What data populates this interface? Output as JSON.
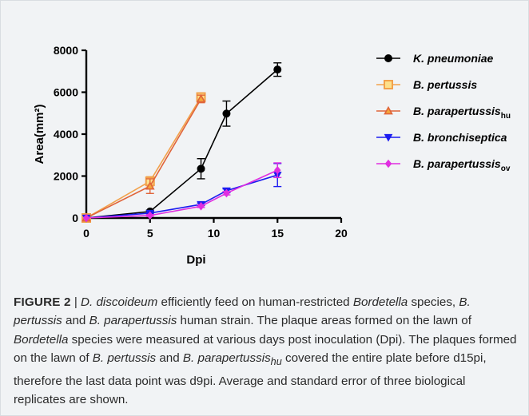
{
  "chart_data": {
    "type": "line",
    "xlabel": "Dpi",
    "ylabel": "Area(mm²)",
    "xlim": [
      0,
      20
    ],
    "ylim": [
      0,
      8000
    ],
    "xticks": [
      0,
      5,
      10,
      15,
      20
    ],
    "yticks": [
      0,
      2000,
      4000,
      6000,
      8000
    ],
    "grid": false,
    "legend_position": "right",
    "series": [
      {
        "name": "K. pneumoniae",
        "color": "#000000",
        "marker": "circle",
        "x": [
          0,
          5,
          9,
          11,
          15
        ],
        "y": [
          0,
          310,
          2350,
          4980,
          7080
        ],
        "err": [
          0,
          60,
          480,
          600,
          320
        ]
      },
      {
        "name": "B. pertussis",
        "color": "#f2a14b",
        "marker": "square",
        "x": [
          0,
          5,
          9
        ],
        "y": [
          0,
          1750,
          5770
        ],
        "err": [
          0,
          220,
          200
        ]
      },
      {
        "name": "B. parapertussis",
        "name_sub": "hu",
        "color": "#e0643a",
        "marker": "triangle-up",
        "x": [
          0,
          5,
          9
        ],
        "y": [
          0,
          1520,
          5680
        ],
        "err": [
          0,
          350,
          180
        ]
      },
      {
        "name": "B. bronchiseptica",
        "color": "#1c1cf0",
        "marker": "triangle-down",
        "x": [
          0,
          5,
          9,
          11,
          15
        ],
        "y": [
          0,
          230,
          650,
          1300,
          2050
        ],
        "err": [
          0,
          40,
          60,
          90,
          550
        ]
      },
      {
        "name": "B. parapertussis",
        "name_sub": "ov",
        "color": "#e02ee0",
        "marker": "diamond",
        "x": [
          0,
          5,
          9,
          11,
          15
        ],
        "y": [
          0,
          120,
          560,
          1180,
          2280
        ],
        "err": [
          0,
          40,
          60,
          80,
          350
        ]
      }
    ]
  },
  "caption": {
    "label": "FIGURE 2",
    "sep": " | ",
    "p1": "D. discoideum",
    "p2": " efficiently feed on human-restricted ",
    "p3": "Bordetella",
    "p4": " species, ",
    "p5": "B. pertussis",
    "p6": " and ",
    "p7": "B. parapertussis",
    "p8": " human strain. The plaque areas formed on the lawn of ",
    "p9": "Bordetella",
    "p10": " species were measured at various days post inoculation (Dpi). The plaques formed on the lawn of ",
    "p11": "B. pertussis",
    "p12": " and ",
    "p13": "B. parapertussis",
    "p13sub": "hu",
    "p14": " covered the entire plate before d15pi, therefore the last data point was d9pi. Average and standard error of three biological replicates are shown."
  }
}
